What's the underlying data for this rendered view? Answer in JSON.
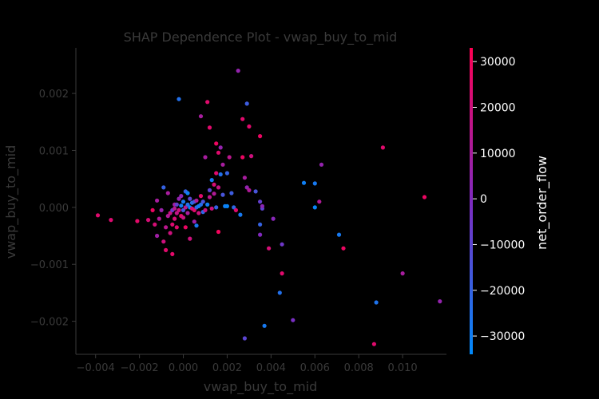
{
  "chart_data": {
    "type": "scatter",
    "title": "SHAP Dependence Plot - vwap_buy_to_mid",
    "xlabel": "vwap_buy_to_mid",
    "ylabel": "vwap_buy_to_mid",
    "xlim": [
      -0.0049,
      0.012
    ],
    "ylim": [
      -0.00258,
      0.0028
    ],
    "x_ticks": [
      -0.004,
      -0.002,
      0.0,
      0.002,
      0.004,
      0.006,
      0.008,
      0.01
    ],
    "x_tick_labels": [
      "−0.004",
      "−0.002",
      "0.000",
      "0.002",
      "0.004",
      "0.006",
      "0.008",
      "0.010"
    ],
    "y_ticks": [
      -0.002,
      -0.001,
      0.0,
      0.001,
      0.002
    ],
    "y_tick_labels": [
      "−0.002",
      "−0.001",
      "0.000",
      "0.001",
      "0.002"
    ],
    "colorbar": {
      "label": "net_order_flow",
      "range": [
        -34000,
        33000
      ],
      "ticks": [
        -30000,
        -20000,
        -10000,
        0,
        10000,
        20000,
        30000
      ],
      "tick_labels": [
        "−30000",
        "−20000",
        "−10000",
        "0",
        "10000",
        "20000",
        "30000"
      ],
      "colors": [
        "#008afb",
        "#7f2ac0",
        "#ff0052"
      ]
    },
    "points": [
      [
        -0.0039,
        -0.00014,
        25000
      ],
      [
        -0.0033,
        -0.00022,
        24000
      ],
      [
        -0.0021,
        -0.00024,
        26000
      ],
      [
        -0.0016,
        -0.00022,
        22000
      ],
      [
        -0.0014,
        -5e-05,
        28000
      ],
      [
        -0.0012,
        0.00012,
        10000
      ],
      [
        -0.0013,
        -0.0003,
        22000
      ],
      [
        -0.0012,
        -0.0005,
        8000
      ],
      [
        -0.0011,
        -0.0002,
        12000
      ],
      [
        -0.001,
        -5e-05,
        6000
      ],
      [
        -0.0009,
        -0.0006,
        20000
      ],
      [
        -0.0009,
        0.00035,
        -20000
      ],
      [
        -0.0008,
        -0.00075,
        25000
      ],
      [
        -0.0008,
        -0.00035,
        15000
      ],
      [
        -0.0007,
        -0.00015,
        12000
      ],
      [
        -0.0007,
        0.00025,
        10000
      ],
      [
        -0.0006,
        -0.0001,
        18000
      ],
      [
        -0.0006,
        -0.00045,
        20000
      ],
      [
        -0.0005,
        -0.0003,
        24000
      ],
      [
        -0.0005,
        -5e-05,
        -5000
      ],
      [
        -0.0005,
        -0.00082,
        26000
      ],
      [
        -0.0004,
        -2e-05,
        14000
      ],
      [
        -0.0004,
        -0.0002,
        22000
      ],
      [
        -0.0004,
        5e-05,
        9000
      ],
      [
        -0.0003,
        -0.0001,
        17000
      ],
      [
        -0.0003,
        -0.00035,
        25000
      ],
      [
        -0.0003,
        5e-05,
        -8000
      ],
      [
        -0.0002,
        0.00015,
        5000
      ],
      [
        -0.0002,
        -5e-05,
        20000
      ],
      [
        -0.0002,
        0.0019,
        -25000
      ],
      [
        -0.0001,
        3e-05,
        -30000
      ],
      [
        -0.0001,
        -0.00015,
        25000
      ],
      [
        -0.0001,
        0.0002,
        3000
      ],
      [
        0.0,
        -5e-05,
        -15000
      ],
      [
        0.0,
        0.0001,
        -28000
      ],
      [
        0.0,
        -0.00018,
        18000
      ],
      [
        0.0001,
        0.00028,
        -20000
      ],
      [
        0.0001,
        0.0,
        15000
      ],
      [
        0.0001,
        -0.00035,
        28000
      ],
      [
        0.0002,
        5e-05,
        -25000
      ],
      [
        0.0002,
        0.00025,
        -30000
      ],
      [
        0.0002,
        -0.0001,
        10000
      ],
      [
        0.0003,
        -0.00055,
        20000
      ],
      [
        0.0003,
        0.0,
        -32000
      ],
      [
        0.0003,
        0.00015,
        -10000
      ],
      [
        0.0004,
        -2e-05,
        22000
      ],
      [
        0.0004,
        8e-05,
        -25000
      ],
      [
        0.0005,
        0.0001,
        -15000
      ],
      [
        0.0005,
        -5e-05,
        25000
      ],
      [
        0.0005,
        -0.00025,
        8000
      ],
      [
        0.0006,
        0.0,
        -20000
      ],
      [
        0.0006,
        -0.00032,
        -28000
      ],
      [
        0.0006,
        0.00012,
        12000
      ],
      [
        0.0007,
        2e-05,
        -30000
      ],
      [
        0.0007,
        -0.0001,
        20000
      ],
      [
        0.0008,
        5e-05,
        -25000
      ],
      [
        0.0008,
        0.0002,
        25000
      ],
      [
        0.0008,
        0.0016,
        10000
      ],
      [
        0.0009,
        -8e-05,
        -22000
      ],
      [
        0.0009,
        0.0001,
        -15000
      ],
      [
        0.001,
        0.00088,
        10000
      ],
      [
        0.001,
        -5e-05,
        18000
      ],
      [
        0.0011,
        0.00185,
        25000
      ],
      [
        0.0011,
        5e-05,
        -30000
      ],
      [
        0.0012,
        0.0014,
        25000
      ],
      [
        0.0012,
        0.0003,
        -10000
      ],
      [
        0.0012,
        0.00018,
        15000
      ],
      [
        0.0013,
        -2e-05,
        20000
      ],
      [
        0.0013,
        0.00048,
        -28000
      ],
      [
        0.0014,
        0.0004,
        22000
      ],
      [
        0.0014,
        0.00024,
        12000
      ],
      [
        0.0015,
        0.00112,
        28000
      ],
      [
        0.0015,
        0.0006,
        25000
      ],
      [
        0.0015,
        0.0,
        -20000
      ],
      [
        0.0016,
        0.00096,
        25000
      ],
      [
        0.0016,
        -0.00043,
        30000
      ],
      [
        0.0016,
        0.00035,
        18000
      ],
      [
        0.0017,
        0.00105,
        5000
      ],
      [
        0.0017,
        0.00058,
        -25000
      ],
      [
        0.0018,
        0.00075,
        10000
      ],
      [
        0.0018,
        0.00022,
        -15000
      ],
      [
        0.0019,
        2e-05,
        -30000
      ],
      [
        0.002,
        2e-05,
        -32000
      ],
      [
        0.002,
        0.0006,
        -20000
      ],
      [
        0.0021,
        0.00088,
        15000
      ],
      [
        0.0022,
        0.00025,
        -18000
      ],
      [
        0.0023,
        0.0,
        -22000
      ],
      [
        0.0024,
        -5e-05,
        25000
      ],
      [
        0.0025,
        0.0024,
        5000
      ],
      [
        0.0026,
        -0.00013,
        -28000
      ],
      [
        0.0027,
        0.00088,
        28000
      ],
      [
        0.0027,
        0.00155,
        25000
      ],
      [
        0.0028,
        0.00052,
        10000
      ],
      [
        0.0029,
        0.00035,
        5000
      ],
      [
        0.0029,
        0.00182,
        -18000
      ],
      [
        0.003,
        0.00142,
        25000
      ],
      [
        0.003,
        0.0003,
        12000
      ],
      [
        0.0031,
        0.0009,
        20000
      ],
      [
        0.0033,
        0.00028,
        -15000
      ],
      [
        0.0035,
        0.00125,
        28000
      ],
      [
        0.0035,
        -0.00048,
        0
      ],
      [
        0.0035,
        -0.0003,
        -20000
      ],
      [
        0.0035,
        0.0001,
        -8000
      ],
      [
        0.0036,
        -2e-05,
        -10000
      ],
      [
        0.0036,
        2e-05,
        3000
      ],
      [
        0.0039,
        -0.00072,
        22000
      ],
      [
        0.0041,
        -0.0002,
        2000
      ],
      [
        0.0044,
        -0.0015,
        -25000
      ],
      [
        0.0045,
        -0.00065,
        -5000
      ],
      [
        0.0045,
        -0.00116,
        25000
      ],
      [
        0.0037,
        -0.00208,
        -28000
      ],
      [
        0.005,
        -0.00198,
        -2000
      ],
      [
        0.0028,
        -0.0023,
        -10000
      ],
      [
        0.0055,
        0.00043,
        -30000
      ],
      [
        0.006,
        0.00042,
        -28000
      ],
      [
        0.006,
        0.0,
        -32000
      ],
      [
        0.0062,
        0.0001,
        12000
      ],
      [
        0.0063,
        0.00075,
        5000
      ],
      [
        0.0071,
        -0.00048,
        -28000
      ],
      [
        0.0073,
        -0.00072,
        28000
      ],
      [
        0.0087,
        -0.0024,
        25000
      ],
      [
        0.0088,
        -0.00167,
        -26000
      ],
      [
        0.0091,
        0.00105,
        25000
      ],
      [
        0.01,
        -0.00116,
        10000
      ],
      [
        0.011,
        0.00018,
        28000
      ],
      [
        0.0117,
        -0.00165,
        5000
      ]
    ]
  }
}
